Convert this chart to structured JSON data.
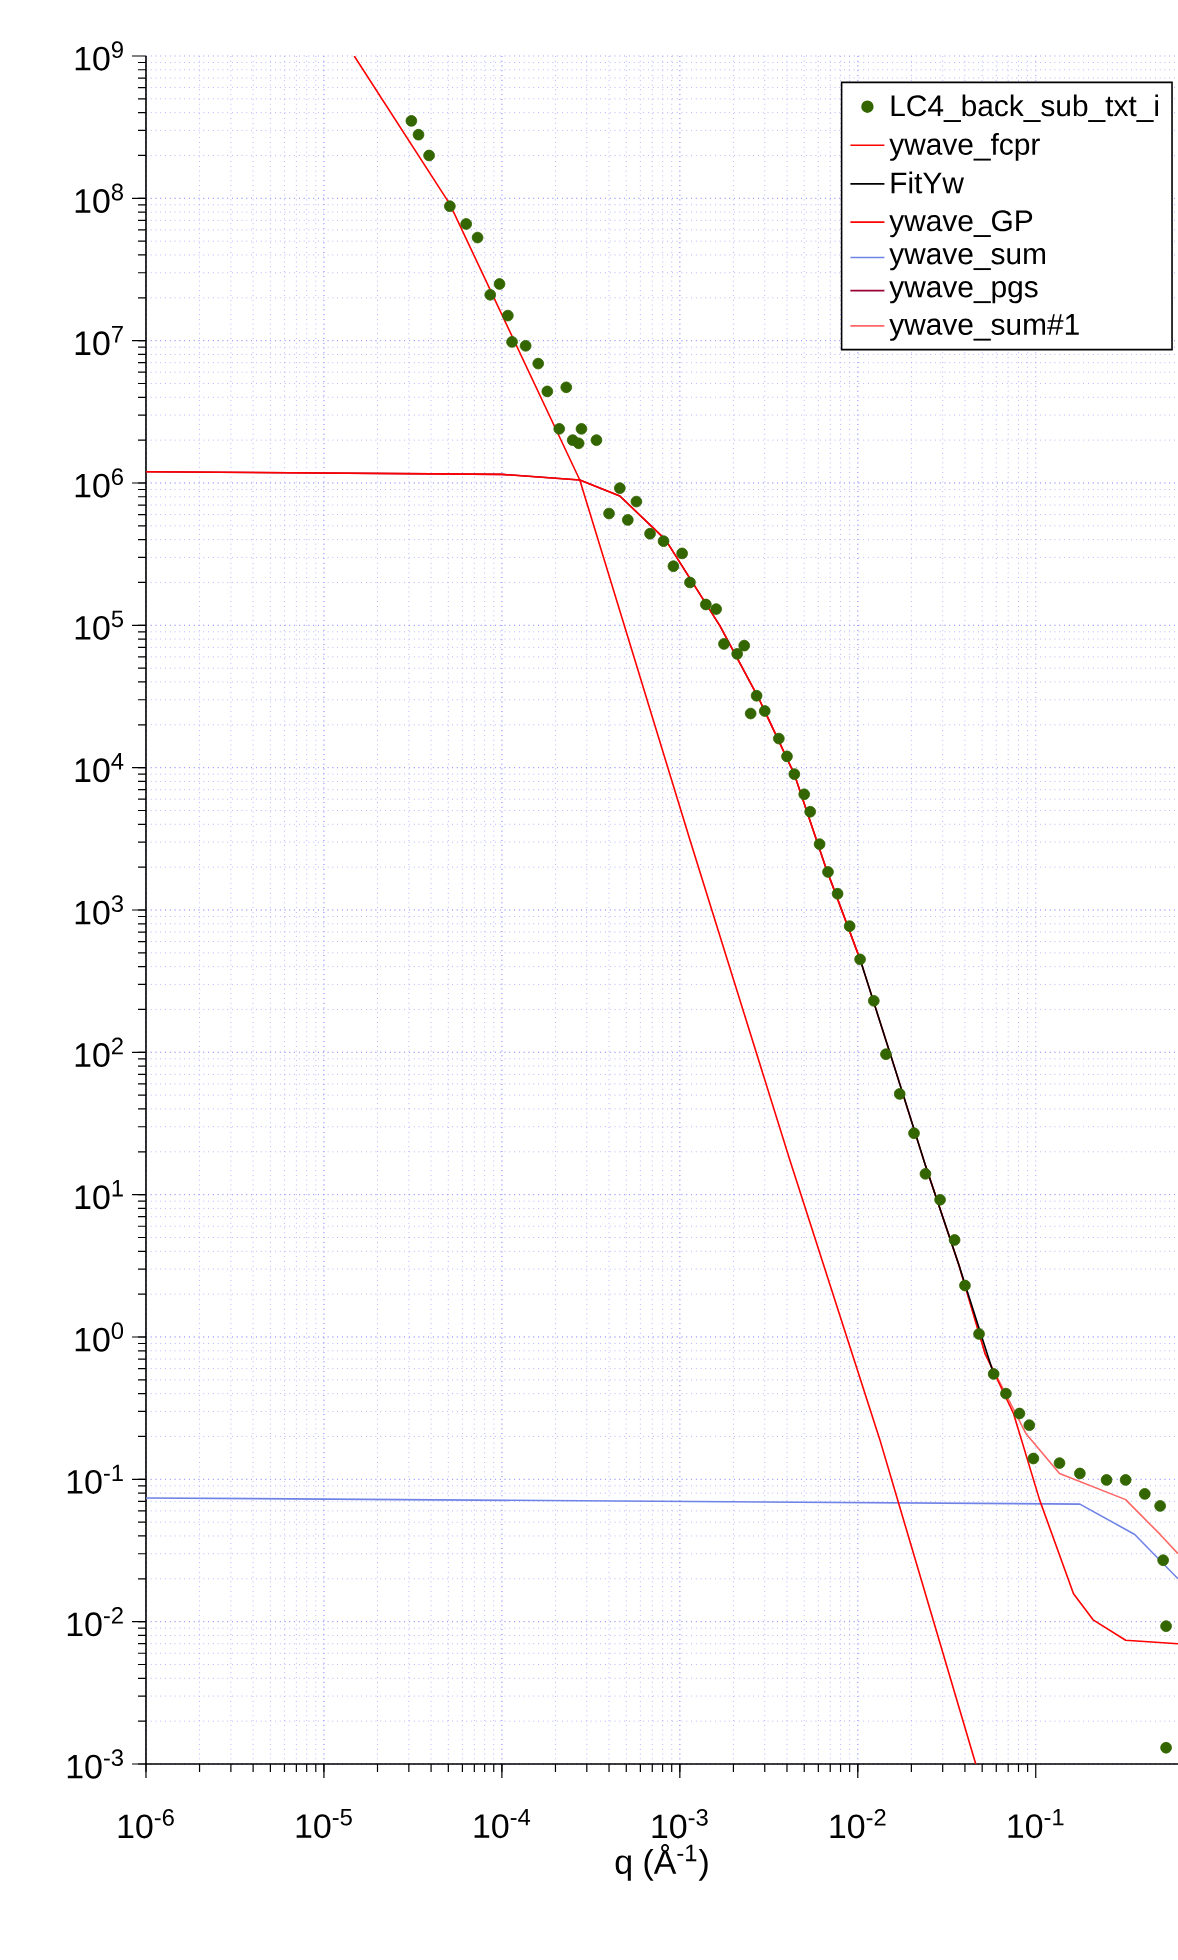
{
  "chart_data": {
    "type": "line",
    "xlabel": "q (Å$^{-1}$)",
    "log": "xy",
    "grid": true,
    "legend": "top right",
    "marker": "circle",
    "xlim": [
      1e-06,
      0.63
    ],
    "ylim": [
      0.001,
      1000000000.0
    ],
    "xticks": [
      {
        "value": 1e-06,
        "label": "10$^{-6}$"
      },
      {
        "value": 1e-05,
        "label": "10$^{-5}$"
      },
      {
        "value": 0.0001,
        "label": "10$^{-4}$"
      },
      {
        "value": 0.001,
        "label": "10$^{-3}$"
      },
      {
        "value": 0.01,
        "label": "10$^{-2}$"
      },
      {
        "value": 0.1,
        "label": "10$^{-1}$"
      }
    ],
    "yticks": [
      {
        "value": 0.001,
        "label": "10$^{-3}$"
      },
      {
        "value": 0.01,
        "label": "10$^{-2}$"
      },
      {
        "value": 0.1,
        "label": "10$^{-1}$"
      },
      {
        "value": 1,
        "label": "10$^{0}$"
      },
      {
        "value": 10,
        "label": "10$^{1}$"
      },
      {
        "value": 100,
        "label": "10$^{2}$"
      },
      {
        "value": 1000,
        "label": "10$^{3}$"
      },
      {
        "value": 10000.0,
        "label": "10$^{4}$"
      },
      {
        "value": 100000.0,
        "label": "10$^{5}$"
      },
      {
        "value": 1000000.0,
        "label": "10$^{6}$"
      },
      {
        "value": 10000000.0,
        "label": "10$^{7}$"
      },
      {
        "value": 100000000.0,
        "label": "10$^{8}$"
      },
      {
        "value": 1000000000.0,
        "label": "10$^{9}$"
      }
    ],
    "series": [
      {
        "name": "LC4_back_sub_txt_i",
        "type": "scatter",
        "color": "#336600",
        "x": [
          3.1e-05,
          3.4e-05,
          3.9e-05,
          5.1e-05,
          6.3e-05,
          7.3e-05,
          8.6e-05,
          9.7e-05,
          0.000108,
          0.000114,
          0.000136,
          0.00016,
          0.00018,
          0.00021,
          0.00023,
          0.00025,
          0.00027,
          0.00028,
          0.00034,
          0.0004,
          0.00046,
          0.00051,
          0.00057,
          0.00068,
          0.00081,
          0.00092,
          0.00103,
          0.00114,
          0.0014,
          0.0016,
          0.00177,
          0.0021,
          0.0023,
          0.0025,
          0.0027,
          0.003,
          0.0036,
          0.004,
          0.0044,
          0.005,
          0.0054,
          0.0061,
          0.0068,
          0.0077,
          0.009,
          0.0103,
          0.0123,
          0.0144,
          0.0172,
          0.0207,
          0.024,
          0.029,
          0.035,
          0.04,
          0.048,
          0.058,
          0.068,
          0.081,
          0.092,
          0.097,
          0.136,
          0.177,
          0.25,
          0.32,
          0.41,
          0.5,
          0.52,
          0.54,
          0.54
        ],
        "values": [
          350000000.0,
          280000000.0,
          200000000.0,
          88000000.0,
          66000000.0,
          53000000.0,
          21000000.0,
          25000000.0,
          15000000.0,
          9800000.0,
          9200000.0,
          6900000.0,
          4400000.0,
          2400000.0,
          4700000.0,
          2000000.0,
          1900000.0,
          2400000.0,
          2000000.0,
          610000.0,
          920000.0,
          550000.0,
          740000.0,
          440000.0,
          390000.0,
          260000.0,
          320000.0,
          200000.0,
          140000.0,
          130000.0,
          74000.0,
          63000.0,
          72000.0,
          24000.0,
          32000.0,
          25000.0,
          16000.0,
          12000.0,
          9000.0,
          6500.0,
          4900.0,
          2900.0,
          1850.0,
          1300.0,
          770,
          450,
          230,
          97,
          51,
          27,
          14,
          9.2,
          4.8,
          2.3,
          1.05,
          0.55,
          0.4,
          0.29,
          0.24,
          0.14,
          0.13,
          0.11,
          0.099,
          0.099,
          0.079,
          0.065,
          0.027,
          0.0093,
          0.0013
        ]
      },
      {
        "name": "ywave_fcpr",
        "type": "line",
        "marker": "none",
        "color": "#ff0000",
        "x": [
          1.48e-05,
          5.1e-05,
          0.000274,
          0.00114,
          0.00415,
          0.0133,
          0.046
        ],
        "values": [
          1000000000.0,
          91000000.0,
          1050000.0,
          3100.0,
          17.5,
          0.19,
          0.001
        ]
      },
      {
        "name": "FitYw",
        "type": "line",
        "marker": "none",
        "color": "#000000",
        "x": [
          0.0103,
          0.016,
          0.024,
          0.037,
          0.058
        ],
        "values": [
          450,
          80,
          16,
          3.2,
          0.55
        ]
      },
      {
        "name": "ywave_GP",
        "type": "line",
        "marker": "none",
        "color": "#ff0000",
        "x": [
          1e-06,
          0.0001,
          0.000274,
          0.00046,
          0.00083,
          0.00168,
          0.0028,
          0.0044,
          0.0066,
          0.0103,
          0.016,
          0.024,
          0.037,
          0.052,
          0.075,
          0.105,
          0.163,
          0.21,
          0.32,
          0.63
        ],
        "values": [
          1200000.0,
          1150000.0,
          1050000.0,
          810000.0,
          400000.0,
          99000.0,
          30000.0,
          9000.0,
          2000.0,
          450,
          80,
          16,
          3.2,
          0.76,
          0.29,
          0.072,
          0.0157,
          0.0103,
          0.0074,
          0.007
        ]
      },
      {
        "name": "ywave_sum",
        "type": "line",
        "marker": "none",
        "color": "#6f82e6",
        "x": [
          1e-06,
          0.177,
          0.36,
          0.63
        ],
        "values": [
          0.074,
          0.067,
          0.041,
          0.02
        ]
      },
      {
        "name": "ywave_pgs",
        "type": "line",
        "marker": "none",
        "color": "#990033",
        "x": [
          1e-06,
          0.0001,
          0.000274,
          0.00046,
          0.00083,
          0.00168,
          0.0028,
          0.0044,
          0.0066,
          0.0103
        ],
        "values": [
          1200000.0,
          1150000.0,
          1050000.0,
          810000.0,
          400000.0,
          99000.0,
          30000.0,
          9000.0,
          2000.0,
          450
        ]
      },
      {
        "name": "ywave_sum#1",
        "type": "line",
        "marker": "none",
        "color": "#ff6666",
        "x": [
          0.024,
          0.037,
          0.052,
          0.088,
          0.136,
          0.32,
          0.5,
          0.63
        ],
        "values": [
          16,
          3.2,
          0.76,
          0.21,
          0.11,
          0.072,
          0.041,
          0.03
        ]
      }
    ]
  }
}
